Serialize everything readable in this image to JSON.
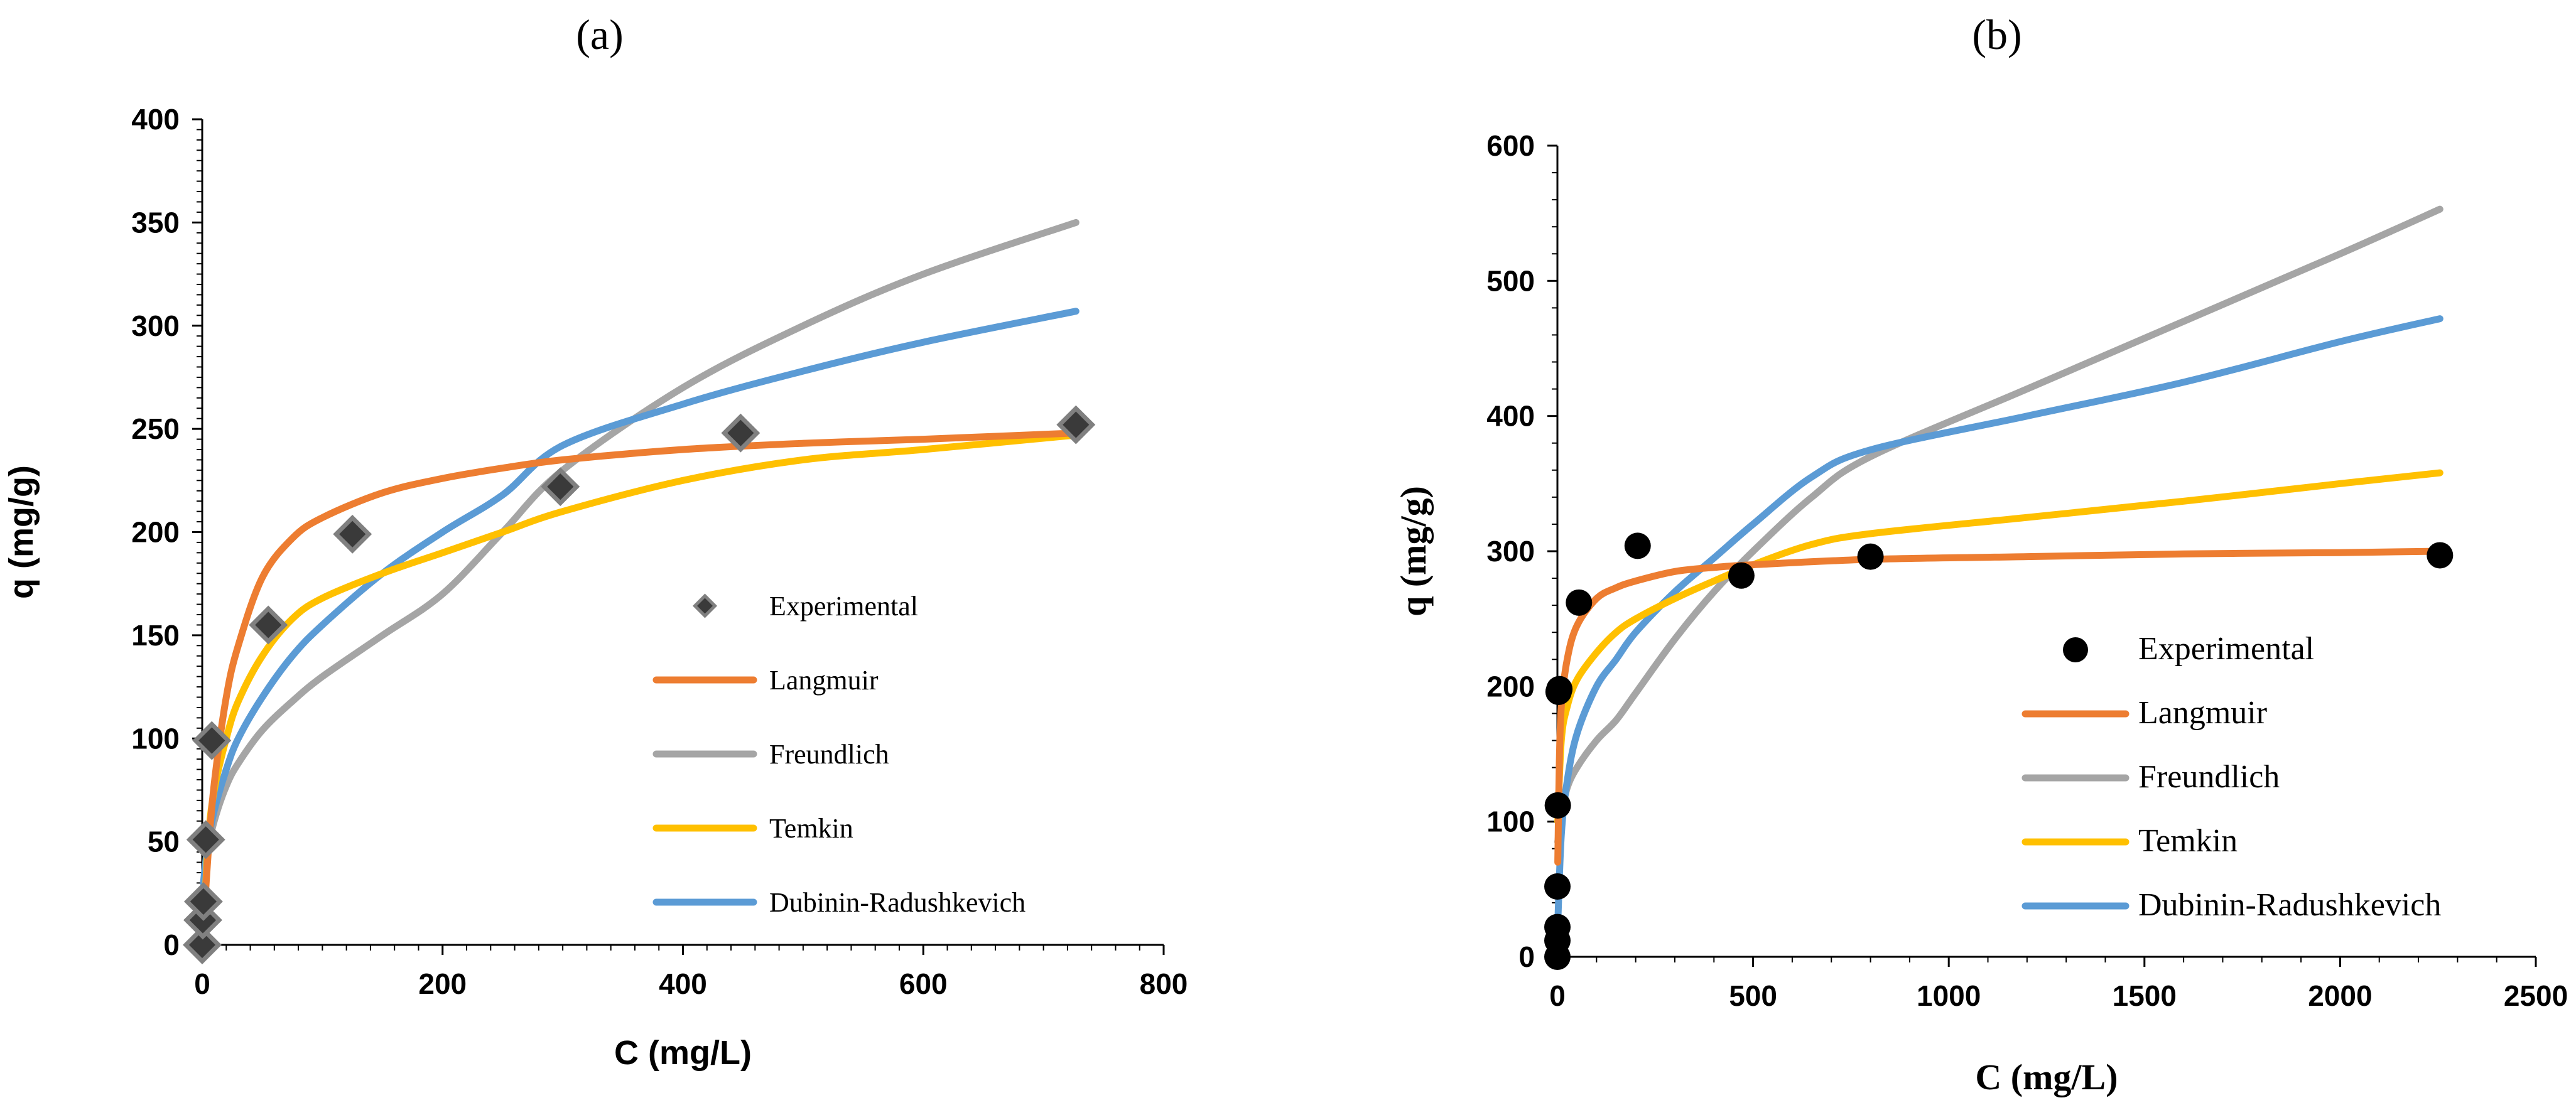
{
  "chart_data": [
    {
      "id": "a",
      "type": "scatter",
      "panel_label": "(a)",
      "xlabel": "C (mg/L)",
      "ylabel": "q (mg/g)",
      "xlim": [
        0,
        800
      ],
      "ylim": [
        0,
        400
      ],
      "xticks": [
        "0",
        "200",
        "400",
        "600",
        "800"
      ],
      "yticks": [
        "0",
        "50",
        "100",
        "150",
        "200",
        "250",
        "300",
        "350",
        "400"
      ],
      "legend_position": "right-middle",
      "colors": {
        "Langmuir": "#ED7D31",
        "Freundlich": "#A5A5A5",
        "Temkin": "#FFC000",
        "Dubinin-Radushkevich": "#5B9BD5",
        "Experimental": "#404040"
      },
      "experimental": {
        "name": "Experimental",
        "marker": "diamond",
        "x": [
          0,
          0.5,
          1,
          3,
          8,
          55,
          125,
          298,
          448,
          727
        ],
        "y": [
          0,
          12,
          21,
          51,
          99,
          155,
          199,
          222,
          248,
          252
        ]
      },
      "series": [
        {
          "name": "Langmuir",
          "x": [
            0,
            5,
            10,
            20,
            30,
            50,
            75,
            100,
            150,
            200,
            250,
            300,
            400,
            500,
            600,
            727
          ],
          "y": [
            0,
            45,
            78,
            120,
            145,
            178,
            197,
            207,
            219,
            226,
            231,
            235,
            240,
            243,
            245,
            248
          ]
        },
        {
          "name": "Freundlich",
          "x": [
            1,
            5,
            10,
            20,
            30,
            50,
            75,
            100,
            150,
            200,
            250,
            300,
            400,
            500,
            600,
            727
          ],
          "y": [
            22,
            46,
            60,
            77,
            88,
            104,
            118,
            130,
            150,
            170,
            200,
            230,
            270,
            300,
            325,
            350
          ]
        },
        {
          "name": "Temkin",
          "x": [
            1,
            5,
            10,
            20,
            30,
            50,
            75,
            100,
            150,
            200,
            250,
            300,
            400,
            500,
            600,
            727
          ],
          "y": [
            5,
            50,
            75,
            100,
            118,
            140,
            158,
            168,
            180,
            190,
            200,
            210,
            225,
            235,
            240,
            247
          ]
        },
        {
          "name": "Dubinin-Radushkevich",
          "x": [
            1,
            5,
            10,
            20,
            30,
            50,
            75,
            100,
            150,
            200,
            250,
            300,
            400,
            500,
            600,
            727
          ],
          "y": [
            30,
            50,
            65,
            85,
            100,
            120,
            140,
            155,
            180,
            200,
            218,
            242,
            262,
            278,
            292,
            307
          ]
        }
      ]
    },
    {
      "id": "b",
      "type": "scatter",
      "panel_label": "(b)",
      "xlabel": "C (mg/L)",
      "ylabel": "q (mg/g)",
      "xlim": [
        0,
        2500
      ],
      "ylim": [
        0,
        600
      ],
      "xticks": [
        "0",
        "500",
        "1000",
        "1500",
        "2000",
        "2500"
      ],
      "yticks": [
        "0",
        "100",
        "200",
        "300",
        "400",
        "500",
        "600"
      ],
      "legend_position": "right-middle",
      "colors": {
        "Langmuir": "#ED7D31",
        "Freundlich": "#A5A5A5",
        "Temkin": "#FFC000",
        "Dubinin-Radushkevich": "#5B9BD5",
        "Experimental": "#000000"
      },
      "experimental": {
        "name": "Experimental",
        "marker": "circle",
        "x": [
          0,
          0,
          0,
          0,
          1,
          3,
          5,
          55,
          205,
          470,
          800,
          2255
        ],
        "y": [
          0,
          12,
          22,
          52,
          112,
          196,
          198,
          262,
          304,
          282,
          296,
          297
        ]
      },
      "series": [
        {
          "name": "Langmuir",
          "x": [
            1,
            5,
            10,
            25,
            50,
            100,
            150,
            200,
            300,
            400,
            500,
            800,
            1200,
            1600,
            2000,
            2255
          ],
          "y": [
            70,
            145,
            185,
            220,
            245,
            265,
            273,
            278,
            285,
            288,
            290,
            294,
            296,
            298,
            299,
            300
          ]
        },
        {
          "name": "Freundlich",
          "x": [
            1,
            10,
            25,
            50,
            100,
            150,
            200,
            300,
            400,
            500,
            650,
            800,
            1200,
            1600,
            2000,
            2255
          ],
          "y": [
            85,
            105,
            125,
            140,
            160,
            175,
            195,
            235,
            270,
            300,
            340,
            370,
            420,
            470,
            520,
            553
          ]
        },
        {
          "name": "Temkin",
          "x": [
            1,
            10,
            25,
            50,
            100,
            150,
            200,
            300,
            400,
            500,
            650,
            800,
            1200,
            1600,
            2000,
            2255
          ],
          "y": [
            100,
            160,
            185,
            205,
            225,
            240,
            250,
            265,
            278,
            290,
            305,
            313,
            325,
            337,
            350,
            358
          ]
        },
        {
          "name": "Dubinin-Radushkevich",
          "x": [
            1,
            10,
            25,
            50,
            100,
            150,
            200,
            300,
            400,
            500,
            650,
            800,
            1200,
            1600,
            2000,
            2255
          ],
          "y": [
            25,
            90,
            130,
            165,
            200,
            220,
            240,
            270,
            295,
            320,
            355,
            375,
            400,
            425,
            455,
            472
          ]
        }
      ]
    }
  ]
}
